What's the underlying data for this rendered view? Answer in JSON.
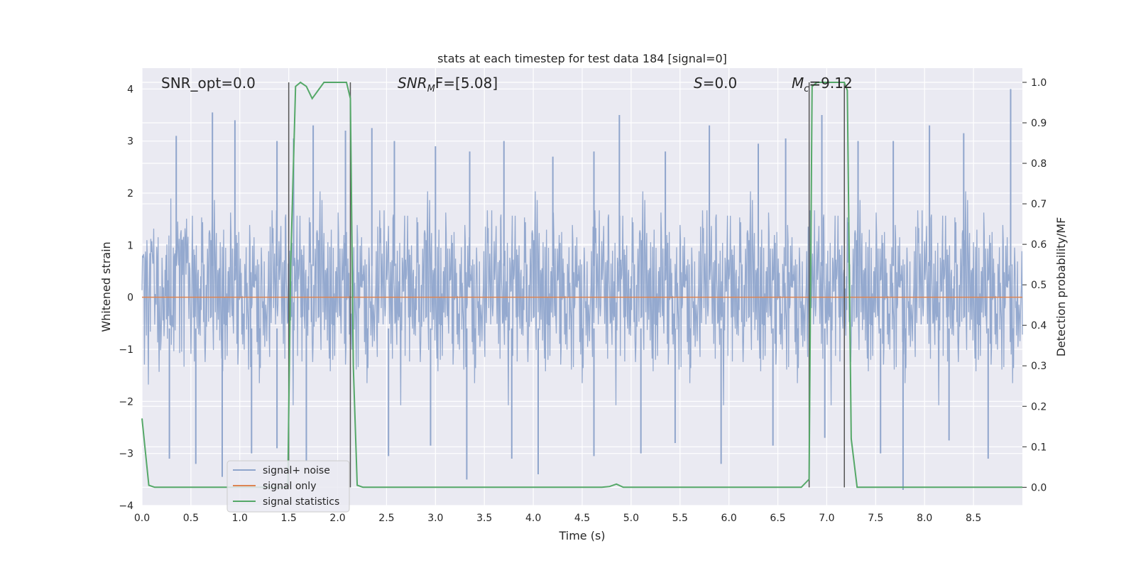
{
  "chart_data": {
    "type": "line",
    "title": "stats at each timestep for test data 184 [signal=0]",
    "xlabel": "Time (s)",
    "ylabel_left": "Whitened strain",
    "ylabel_right": "Detection probability/MF",
    "xlim": [
      0.0,
      9.0
    ],
    "ylim_left": [
      -4.0,
      4.4
    ],
    "ylim_right": [
      -0.045,
      1.035
    ],
    "x_ticks": [
      "0.0",
      "0.5",
      "1.0",
      "1.5",
      "2.0",
      "2.5",
      "3.0",
      "3.5",
      "4.0",
      "4.5",
      "5.0",
      "5.5",
      "6.0",
      "6.5",
      "7.0",
      "7.5",
      "8.0",
      "8.5"
    ],
    "y_ticks_left": [
      "−4",
      "−3",
      "−2",
      "−1",
      "0",
      "1",
      "2",
      "3",
      "4"
    ],
    "y_ticks_right": [
      "0.0",
      "0.1",
      "0.2",
      "0.3",
      "0.4",
      "0.5",
      "0.6",
      "0.7",
      "0.8",
      "0.9",
      "1.0"
    ],
    "grid": true,
    "legend_position": "lower-left",
    "annotations": {
      "snr_opt": "SNR_opt=0.0",
      "snr_mf_label": "SNR",
      "snr_mf_sub": "M",
      "snr_mf_rest": "F=[5.08]",
      "s_label": "S",
      "s_rest": "=0.0",
      "mc_label": "M",
      "mc_sub": "c",
      "mc_rest": "=9.12"
    },
    "colors": {
      "signal_noise": "#8fa5cc",
      "signal_only": "#dd8452",
      "signal_statistics": "#55a868",
      "vlines": "#555555",
      "background": "#eaeaf2",
      "grid": "#ffffff"
    },
    "vertical_lines": [
      1.5,
      2.13,
      6.82,
      7.18
    ],
    "series": [
      {
        "name": "signal+ noise",
        "axis": "left",
        "description_values": {
          "envelope_typical": [
            -1.6,
            1.6
          ],
          "max": 4.0,
          "min": -3.7
        },
        "peaks_x": [
          0.35,
          0.72,
          0.95,
          1.38,
          1.55,
          1.75,
          2.08,
          2.35,
          2.58,
          3.0,
          3.35,
          3.7,
          4.2,
          4.62,
          4.88,
          5.35,
          5.8,
          6.3,
          6.58,
          6.95,
          7.32,
          7.68,
          8.05,
          8.4,
          8.88
        ],
        "peaks_y": [
          3.1,
          3.55,
          3.4,
          3.0,
          3.05,
          3.3,
          3.2,
          3.25,
          3.0,
          2.9,
          2.8,
          3.0,
          2.7,
          2.8,
          3.5,
          2.8,
          3.3,
          2.95,
          3.05,
          3.5,
          3.0,
          3.0,
          3.3,
          3.15,
          4.0
        ],
        "troughs_x": [
          0.28,
          0.55,
          0.82,
          1.12,
          1.38,
          1.68,
          2.52,
          2.95,
          3.32,
          3.78,
          4.05,
          4.62,
          5.1,
          5.45,
          5.92,
          6.45,
          6.98,
          7.55,
          7.78,
          8.25,
          8.65
        ],
        "troughs_y": [
          -3.1,
          -3.2,
          -3.45,
          -3.0,
          -2.9,
          -3.15,
          -3.05,
          -2.85,
          -3.5,
          -3.1,
          -3.4,
          -3.05,
          -3.0,
          -2.8,
          -3.2,
          -2.85,
          -2.7,
          -3.0,
          -3.7,
          -2.75,
          -3.1
        ]
      },
      {
        "name": "signal only",
        "axis": "left",
        "x": [
          0.0,
          9.0
        ],
        "y": [
          0.0,
          0.0
        ]
      },
      {
        "name": "signal statistics",
        "axis": "right",
        "x": [
          0.0,
          0.07,
          0.13,
          1.49,
          1.52,
          1.57,
          1.62,
          1.68,
          1.74,
          1.8,
          1.86,
          1.92,
          1.98,
          2.04,
          2.09,
          2.13,
          2.16,
          2.2,
          2.26,
          4.7,
          4.78,
          4.85,
          4.92,
          6.74,
          6.82,
          6.85,
          6.9,
          7.18,
          7.21,
          7.25,
          7.31,
          9.0
        ],
        "y": [
          0.17,
          0.005,
          0.0,
          0.0,
          0.55,
          0.99,
          1.0,
          0.99,
          0.96,
          0.98,
          1.0,
          1.0,
          1.0,
          1.0,
          1.0,
          0.96,
          0.3,
          0.005,
          0.0,
          0.0,
          0.002,
          0.008,
          0.0,
          0.0,
          0.02,
          0.99,
          1.0,
          1.0,
          0.98,
          0.12,
          0.0,
          0.0
        ]
      }
    ]
  }
}
